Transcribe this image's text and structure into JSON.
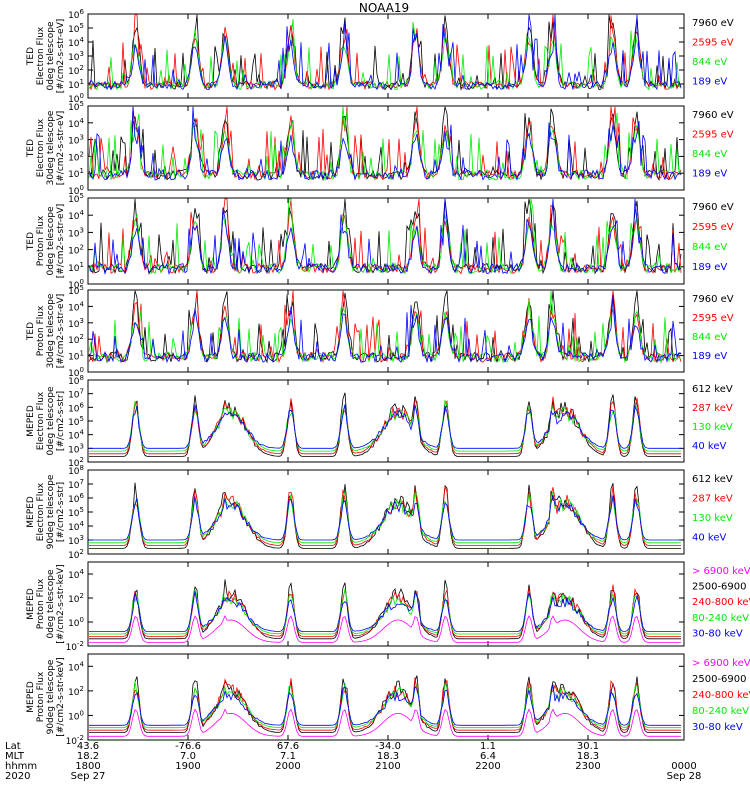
{
  "title": "NOAA19",
  "colors": {
    "black": "#000000",
    "red": "#ff0000",
    "green": "#00ee00",
    "blue": "#0000ff",
    "magenta": "#ff00ff"
  },
  "chart_data": [
    {
      "type": "line",
      "ylabel": [
        "TED",
        "Electron Flux",
        "0deg telescope",
        "[#/cm2-s-str-eV]"
      ],
      "ylog": true,
      "ylim_exp": [
        0,
        6
      ],
      "tick_step": 1,
      "series": [
        {
          "name": "7960 eV",
          "color": "#000000"
        },
        {
          "name": "2595 eV",
          "color": "#ff0000"
        },
        {
          "name": "844 eV",
          "color": "#00ee00"
        },
        {
          "name": "189 eV",
          "color": "#0000ff"
        }
      ]
    },
    {
      "type": "line",
      "ylabel": [
        "TED",
        "Electron Flux",
        "30deg telescope",
        "[#/cm2-s-str-eV]"
      ],
      "ylog": true,
      "ylim_exp": [
        0,
        5
      ],
      "tick_step": 1,
      "series": [
        {
          "name": "7960 eV",
          "color": "#000000"
        },
        {
          "name": "2595 eV",
          "color": "#ff0000"
        },
        {
          "name": "844 eV",
          "color": "#00ee00"
        },
        {
          "name": "189 eV",
          "color": "#0000ff"
        }
      ]
    },
    {
      "type": "line",
      "ylabel": [
        "TED",
        "Proton Flux",
        "0deg telescope",
        "[#/cm2-s-str-eV]"
      ],
      "ylog": true,
      "ylim_exp": [
        0,
        5
      ],
      "tick_step": 1,
      "series": [
        {
          "name": "7960 eV",
          "color": "#000000"
        },
        {
          "name": "2595 eV",
          "color": "#ff0000"
        },
        {
          "name": "844 eV",
          "color": "#00ee00"
        },
        {
          "name": "189 eV",
          "color": "#0000ff"
        }
      ]
    },
    {
      "type": "line",
      "ylabel": [
        "TED",
        "Proton Flux",
        "30deg telescope",
        "[#/cm2-s-str-eV]"
      ],
      "ylog": true,
      "ylim_exp": [
        0,
        5
      ],
      "tick_step": 1,
      "series": [
        {
          "name": "7960 eV",
          "color": "#000000"
        },
        {
          "name": "2595 eV",
          "color": "#ff0000"
        },
        {
          "name": "844 eV",
          "color": "#00ee00"
        },
        {
          "name": "189 eV",
          "color": "#0000ff"
        }
      ]
    },
    {
      "type": "line",
      "ylabel": [
        "MEPED",
        "Electron Flux",
        "0deg telescope",
        "[#/cm2-s-str]"
      ],
      "ylog": true,
      "ylim_exp": [
        2,
        8
      ],
      "tick_step": 1,
      "series": [
        {
          "name": "612 keV",
          "color": "#000000"
        },
        {
          "name": "287 keV",
          "color": "#ff0000"
        },
        {
          "name": "130 keV",
          "color": "#00ee00"
        },
        {
          "name": "40 keV",
          "color": "#0000ff"
        }
      ]
    },
    {
      "type": "line",
      "ylabel": [
        "MEPED",
        "Electron Flux",
        "90deg telescope",
        "[#/cm2-s-str]"
      ],
      "ylog": true,
      "ylim_exp": [
        2,
        8
      ],
      "tick_step": 1,
      "series": [
        {
          "name": "612 keV",
          "color": "#000000"
        },
        {
          "name": "287 keV",
          "color": "#ff0000"
        },
        {
          "name": "130 keV",
          "color": "#00ee00"
        },
        {
          "name": "40 keV",
          "color": "#0000ff"
        }
      ]
    },
    {
      "type": "line",
      "ylabel": [
        "MEPED",
        "Proton Flux",
        "0deg telescope",
        "[#/cm2-s-str-keV]"
      ],
      "ylog": true,
      "ylim_exp": [
        -2,
        5
      ],
      "tick_step": 2,
      "series": [
        {
          "name": "> 6900 keV",
          "color": "#ff00ff"
        },
        {
          "name": "2500-6900",
          "color": "#000000"
        },
        {
          "name": "240-800 keV",
          "color": "#ff0000"
        },
        {
          "name": "80-240 keV",
          "color": "#00ee00"
        },
        {
          "name": "30-80 keV",
          "color": "#0000ff"
        }
      ]
    },
    {
      "type": "line",
      "ylabel": [
        "MEPED",
        "Proton Flux",
        "90deg telescope",
        "[#/cm2-s-str-keV]"
      ],
      "ylog": true,
      "ylim_exp": [
        -2,
        5
      ],
      "tick_step": 2,
      "series": [
        {
          "name": "> 6900 keV",
          "color": "#ff00ff"
        },
        {
          "name": "2500-6900",
          "color": "#000000"
        },
        {
          "name": "240-800 keV",
          "color": "#ff0000"
        },
        {
          "name": "80-240 keV",
          "color": "#00ee00"
        },
        {
          "name": "30-80 keV",
          "color": "#0000ff"
        }
      ]
    }
  ],
  "x_axis": {
    "row_labels": [
      "Lat",
      "MLT",
      "hhmm",
      "2020"
    ],
    "ticks": [
      {
        "lat": "43.6",
        "mlt": "18.2",
        "hhmm": "1800",
        "date": "Sep 27"
      },
      {
        "lat": "-76.6",
        "mlt": "7.0",
        "hhmm": "1900",
        "date": ""
      },
      {
        "lat": "67.6",
        "mlt": "7.1",
        "hhmm": "2000",
        "date": ""
      },
      {
        "lat": "-34.0",
        "mlt": "18.3",
        "hhmm": "2100",
        "date": ""
      },
      {
        "lat": "1.1",
        "mlt": "6.4",
        "hhmm": "2200",
        "date": ""
      },
      {
        "lat": "30.1",
        "mlt": "18.3",
        "hhmm": "2300",
        "date": ""
      },
      {
        "lat": "",
        "mlt": "",
        "hhmm": "0000",
        "date": "Sep 28"
      }
    ]
  }
}
